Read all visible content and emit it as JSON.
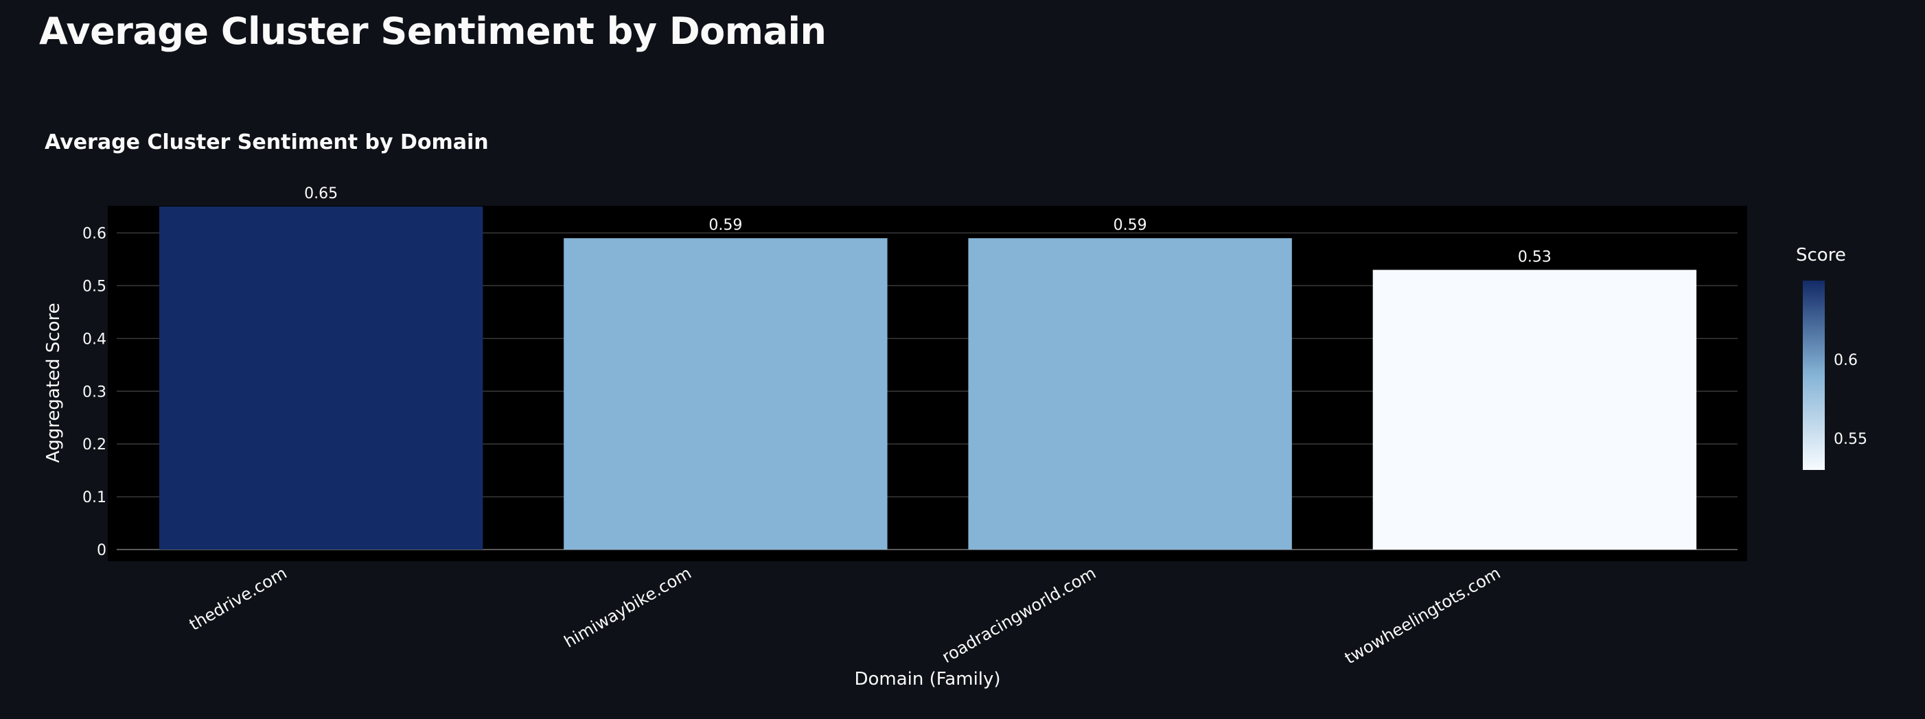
{
  "page": {
    "title": "Average Cluster Sentiment by Domain"
  },
  "chart_data": {
    "type": "bar",
    "title": "Average Cluster Sentiment by Domain",
    "xlabel": "Domain (Family)",
    "ylabel": "Aggregated Score",
    "categories": [
      "thedrive.com",
      "himiwaybike.com",
      "roadracingworld.com",
      "twowheelingtots.com"
    ],
    "values": [
      0.65,
      0.59,
      0.59,
      0.53
    ],
    "data_labels": [
      "0.65",
      "0.59",
      "0.59",
      "0.53"
    ],
    "ylim": [
      0,
      0.7
    ],
    "yticks": [
      0,
      0.1,
      0.2,
      0.3,
      0.4,
      0.5,
      0.6
    ],
    "ytick_labels": [
      "0",
      "0.1",
      "0.2",
      "0.3",
      "0.4",
      "0.5",
      "0.6"
    ],
    "grid": true,
    "plot_background": "#000000",
    "colorscale": {
      "title": "Score",
      "name": "Blues",
      "min_color": "#f7fbff",
      "mid_color": "#86b4d6",
      "max_color": "#132b67",
      "range": [
        0.53,
        0.65
      ],
      "ticks": [
        0.55,
        0.6
      ],
      "tick_labels": [
        "0.55",
        "0.6"
      ],
      "position": "right"
    },
    "bar_colors": [
      "#132b67",
      "#86b4d6",
      "#86b4d6",
      "#f7fbff"
    ]
  }
}
